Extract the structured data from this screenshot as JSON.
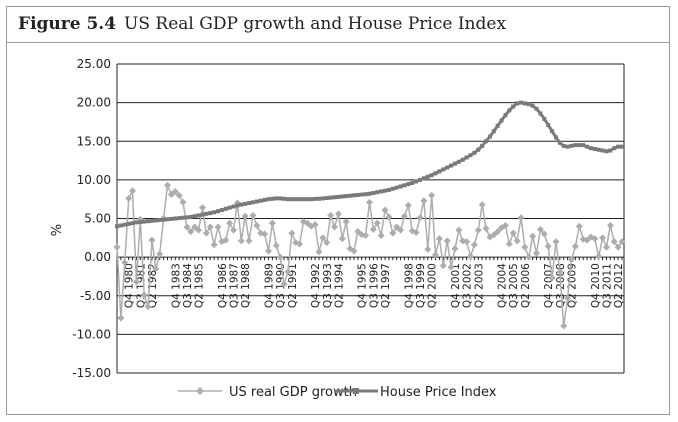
{
  "figure": {
    "label": "Figure 5.4",
    "title": "US Real GDP growth and House Price Index"
  },
  "chart_data": {
    "type": "line",
    "ylabel": "%",
    "ylim": [
      -15,
      25
    ],
    "yticks": [
      "-15.00",
      "-10.00",
      "-5.00",
      "0.00",
      "5.00",
      "10.00",
      "15.00",
      "20.00",
      "25.00"
    ],
    "grid": true,
    "legend": "bottom",
    "x_start": "Q1 1980",
    "xtick_labels": [
      "Q4 1980",
      "Q3 1981",
      "Q2 1982",
      "Q4 1983",
      "Q3 1984",
      "Q2 1985",
      "Q4 1986",
      "Q3 1987",
      "Q2 1988",
      "Q4 1989",
      "Q3 1990",
      "Q2 1991",
      "Q4 1992",
      "Q3 1993",
      "Q2 1994",
      "Q4 1995",
      "Q3 1996",
      "Q2 1997",
      "Q4 1998",
      "Q3 1999",
      "Q2 2000",
      "Q4 2001",
      "Q3 2002",
      "Q2 2003",
      "Q4 2004",
      "Q3 2005",
      "Q2 2006",
      "Q4 2007",
      "Q3 2008",
      "Q2 2009",
      "Q4 2010",
      "Q3 2011",
      "Q2 2012"
    ],
    "series": [
      {
        "name": "US real GDP growth",
        "color": "#adadad",
        "marker": "diamond",
        "values": [
          1.3,
          -7.9,
          -0.7,
          7.6,
          8.6,
          -3.2,
          4.9,
          -4.9,
          -6.4,
          2.2,
          -1.5,
          0.4,
          5.0,
          9.3,
          8.1,
          8.5,
          8.0,
          7.1,
          3.9,
          3.3,
          3.9,
          3.5,
          6.4,
          3.1,
          3.9,
          1.6,
          3.9,
          2.0,
          2.2,
          4.4,
          3.5,
          7.0,
          2.1,
          5.3,
          2.1,
          5.4,
          4.1,
          3.1,
          3.0,
          0.8,
          4.4,
          1.5,
          0.0,
          -3.5,
          -1.9,
          3.1,
          1.9,
          1.7,
          4.6,
          4.4,
          4.0,
          4.2,
          0.7,
          2.5,
          1.9,
          5.4,
          3.9,
          5.6,
          2.4,
          4.6,
          1.1,
          0.8,
          3.3,
          2.9,
          2.8,
          7.1,
          3.6,
          4.4,
          2.8,
          6.1,
          5.2,
          3.1,
          3.9,
          3.5,
          5.3,
          6.7,
          3.4,
          3.2,
          5.1,
          7.3,
          1.0,
          8.0,
          0.3,
          2.4,
          -1.1,
          2.1,
          -1.3,
          1.1,
          3.5,
          2.1,
          2.0,
          0.1,
          1.6,
          3.5,
          6.8,
          3.7,
          2.6,
          2.9,
          3.3,
          3.8,
          4.1,
          1.7,
          3.1,
          2.1,
          5.1,
          1.3,
          0.0,
          2.7,
          0.5,
          3.6,
          3.0,
          1.4,
          -2.7,
          2.0,
          -1.9,
          -8.9,
          -5.3,
          -0.3,
          1.4,
          4.0,
          2.3,
          2.2,
          2.6,
          2.4,
          0.1,
          2.5,
          1.3,
          4.1,
          2.0,
          1.3,
          2.0
        ]
      },
      {
        "name": "House Price Index",
        "color": "#7a7a7a",
        "marker": "square",
        "values": [
          4.0,
          4.1,
          4.2,
          4.3,
          4.4,
          4.5,
          4.55,
          4.6,
          4.65,
          4.7,
          4.75,
          4.8,
          4.85,
          4.9,
          4.95,
          5.0,
          5.05,
          5.1,
          5.15,
          5.2,
          5.3,
          5.4,
          5.5,
          5.6,
          5.7,
          5.8,
          5.95,
          6.1,
          6.25,
          6.4,
          6.55,
          6.7,
          6.8,
          6.9,
          7.0,
          7.1,
          7.2,
          7.3,
          7.4,
          7.5,
          7.55,
          7.6,
          7.6,
          7.55,
          7.5,
          7.5,
          7.5,
          7.5,
          7.5,
          7.5,
          7.5,
          7.55,
          7.55,
          7.6,
          7.65,
          7.7,
          7.75,
          7.8,
          7.85,
          7.9,
          7.95,
          8.0,
          8.05,
          8.1,
          8.15,
          8.2,
          8.3,
          8.4,
          8.5,
          8.6,
          8.7,
          8.85,
          9.0,
          9.15,
          9.3,
          9.45,
          9.6,
          9.8,
          10.0,
          10.2,
          10.4,
          10.6,
          10.85,
          11.1,
          11.35,
          11.6,
          11.85,
          12.1,
          12.35,
          12.6,
          12.9,
          13.2,
          13.5,
          13.9,
          14.4,
          15.0,
          15.6,
          16.3,
          17.0,
          17.7,
          18.4,
          19.0,
          19.5,
          19.9,
          20.0,
          19.9,
          19.8,
          19.6,
          19.2,
          18.6,
          17.9,
          17.1,
          16.3,
          15.5,
          14.8,
          14.4,
          14.3,
          14.4,
          14.5,
          14.5,
          14.5,
          14.3,
          14.1,
          14.0,
          13.9,
          13.8,
          13.7,
          13.8,
          14.1,
          14.3,
          14.3
        ]
      }
    ]
  }
}
